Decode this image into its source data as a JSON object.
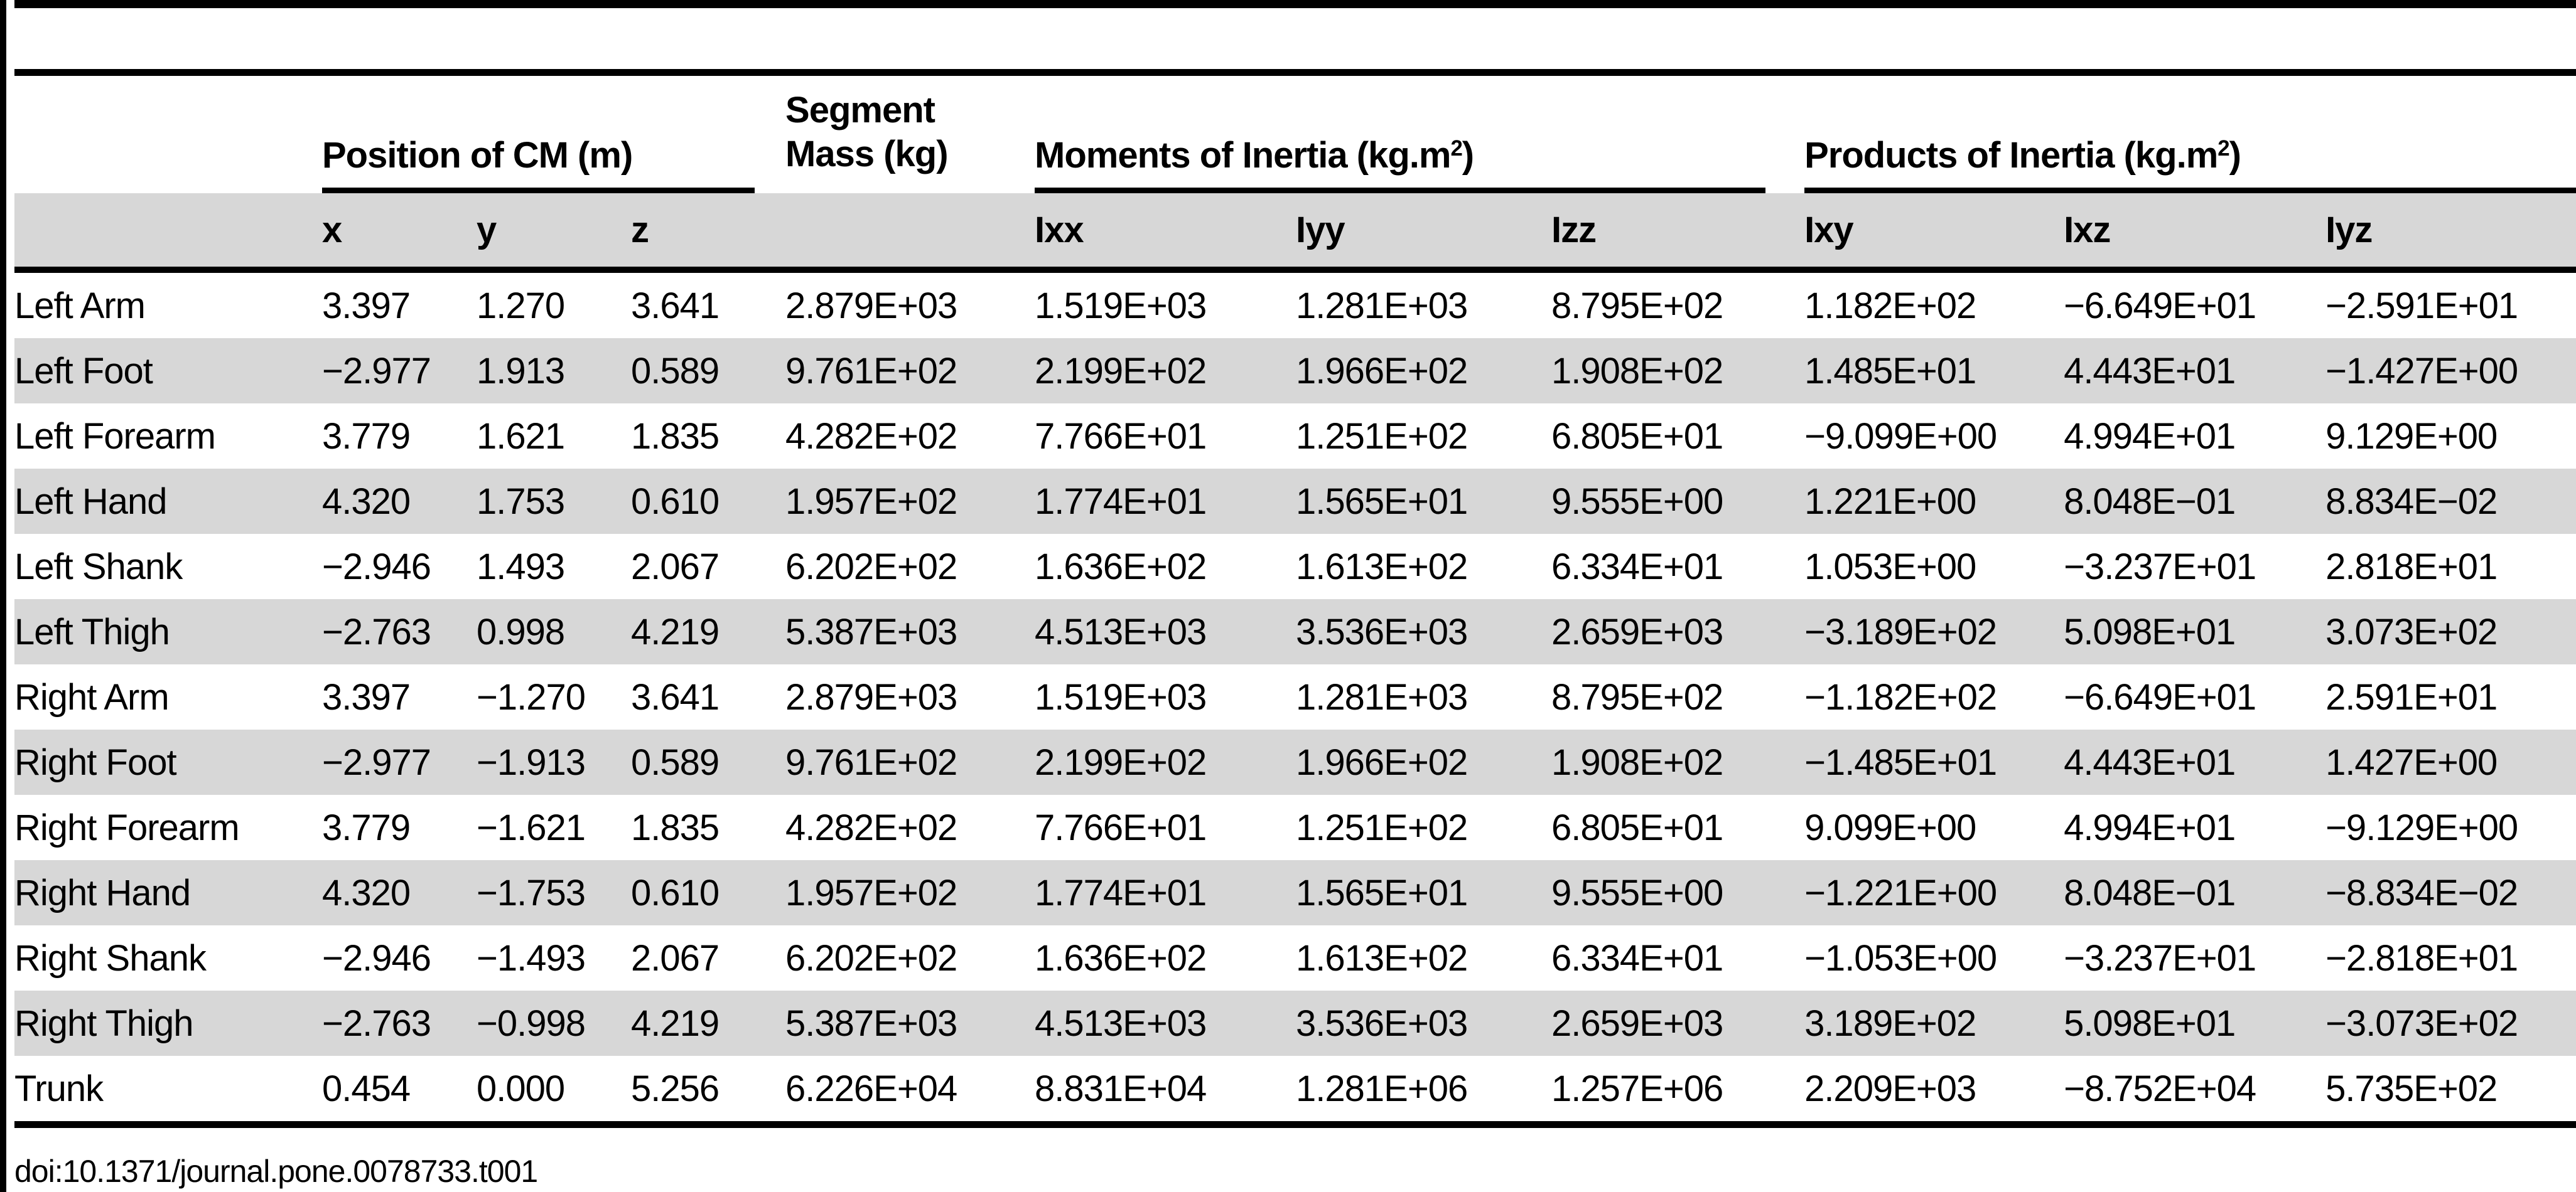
{
  "colors": {
    "background": "#ffffff",
    "row_alt_gray": "#d7d7d7",
    "rule_black": "#000000",
    "text": "#000000"
  },
  "header": {
    "group_position": "Position of CM (m)",
    "group_mass": {
      "line1": "Segment",
      "line2": "Mass (kg)"
    },
    "group_moments": {
      "prefix": "Moments of Inertia (kg.m",
      "sup": "2",
      "suffix": ")"
    },
    "group_products": {
      "prefix": "Products of Inertia (kg.m",
      "sup": "2",
      "suffix": ")"
    },
    "columns": [
      "x",
      "y",
      "z",
      "Ixx",
      "Iyy",
      "Izz",
      "Ixy",
      "Ixz",
      "Iyz"
    ]
  },
  "table": {
    "rows": [
      {
        "segment": "Left Arm",
        "x": "3.397",
        "y": "1.270",
        "z": "3.641",
        "mass": "2.879E+03",
        "ixx": "1.519E+03",
        "iyy": "1.281E+03",
        "izz": "8.795E+02",
        "ixy": "1.182E+02",
        "ixz": "−6.649E+01",
        "iyz": "−2.591E+01"
      },
      {
        "segment": "Left Foot",
        "x": "−2.977",
        "y": "1.913",
        "z": "0.589",
        "mass": "9.761E+02",
        "ixx": "2.199E+02",
        "iyy": "1.966E+02",
        "izz": "1.908E+02",
        "ixy": "1.485E+01",
        "ixz": "4.443E+01",
        "iyz": "−1.427E+00"
      },
      {
        "segment": "Left Forearm",
        "x": "3.779",
        "y": "1.621",
        "z": "1.835",
        "mass": "4.282E+02",
        "ixx": "7.766E+01",
        "iyy": "1.251E+02",
        "izz": "6.805E+01",
        "ixy": "−9.099E+00",
        "ixz": "4.994E+01",
        "iyz": "9.129E+00"
      },
      {
        "segment": "Left Hand",
        "x": "4.320",
        "y": "1.753",
        "z": "0.610",
        "mass": "1.957E+02",
        "ixx": "1.774E+01",
        "iyy": "1.565E+01",
        "izz": "9.555E+00",
        "ixy": "1.221E+00",
        "ixz": "8.048E−01",
        "iyz": "8.834E−02"
      },
      {
        "segment": "Left Shank",
        "x": "−2.946",
        "y": "1.493",
        "z": "2.067",
        "mass": "6.202E+02",
        "ixx": "1.636E+02",
        "iyy": "1.613E+02",
        "izz": "6.334E+01",
        "ixy": "1.053E+00",
        "ixz": "−3.237E+01",
        "iyz": "2.818E+01"
      },
      {
        "segment": "Left Thigh",
        "x": "−2.763",
        "y": "0.998",
        "z": "4.219",
        "mass": "5.387E+03",
        "ixx": "4.513E+03",
        "iyy": "3.536E+03",
        "izz": "2.659E+03",
        "ixy": "−3.189E+02",
        "ixz": "5.098E+01",
        "iyz": "3.073E+02"
      },
      {
        "segment": "Right Arm",
        "x": "3.397",
        "y": "−1.270",
        "z": "3.641",
        "mass": "2.879E+03",
        "ixx": "1.519E+03",
        "iyy": "1.281E+03",
        "izz": "8.795E+02",
        "ixy": "−1.182E+02",
        "ixz": "−6.649E+01",
        "iyz": "2.591E+01"
      },
      {
        "segment": "Right Foot",
        "x": "−2.977",
        "y": "−1.913",
        "z": "0.589",
        "mass": "9.761E+02",
        "ixx": "2.199E+02",
        "iyy": "1.966E+02",
        "izz": "1.908E+02",
        "ixy": "−1.485E+01",
        "ixz": "4.443E+01",
        "iyz": "1.427E+00"
      },
      {
        "segment": "Right Forearm",
        "x": "3.779",
        "y": "−1.621",
        "z": "1.835",
        "mass": "4.282E+02",
        "ixx": "7.766E+01",
        "iyy": "1.251E+02",
        "izz": "6.805E+01",
        "ixy": "9.099E+00",
        "ixz": "4.994E+01",
        "iyz": "−9.129E+00"
      },
      {
        "segment": "Right Hand",
        "x": "4.320",
        "y": "−1.753",
        "z": "0.610",
        "mass": "1.957E+02",
        "ixx": "1.774E+01",
        "iyy": "1.565E+01",
        "izz": "9.555E+00",
        "ixy": "−1.221E+00",
        "ixz": "8.048E−01",
        "iyz": "−8.834E−02"
      },
      {
        "segment": "Right Shank",
        "x": "−2.946",
        "y": "−1.493",
        "z": "2.067",
        "mass": "6.202E+02",
        "ixx": "1.636E+02",
        "iyy": "1.613E+02",
        "izz": "6.334E+01",
        "ixy": "−1.053E+00",
        "ixz": "−3.237E+01",
        "iyz": "−2.818E+01"
      },
      {
        "segment": "Right Thigh",
        "x": "−2.763",
        "y": "−0.998",
        "z": "4.219",
        "mass": "5.387E+03",
        "ixx": "4.513E+03",
        "iyy": "3.536E+03",
        "izz": "2.659E+03",
        "ixy": "3.189E+02",
        "ixz": "5.098E+01",
        "iyz": "−3.073E+02"
      },
      {
        "segment": "Trunk",
        "x": "0.454",
        "y": "0.000",
        "z": "5.256",
        "mass": "6.226E+04",
        "ixx": "8.831E+04",
        "iyy": "1.281E+06",
        "izz": "1.257E+06",
        "ixy": "2.209E+03",
        "ixz": "−8.752E+04",
        "iyz": "5.735E+02"
      }
    ]
  },
  "footer": {
    "doi": "doi:10.1371/journal.pone.0078733.t001"
  }
}
